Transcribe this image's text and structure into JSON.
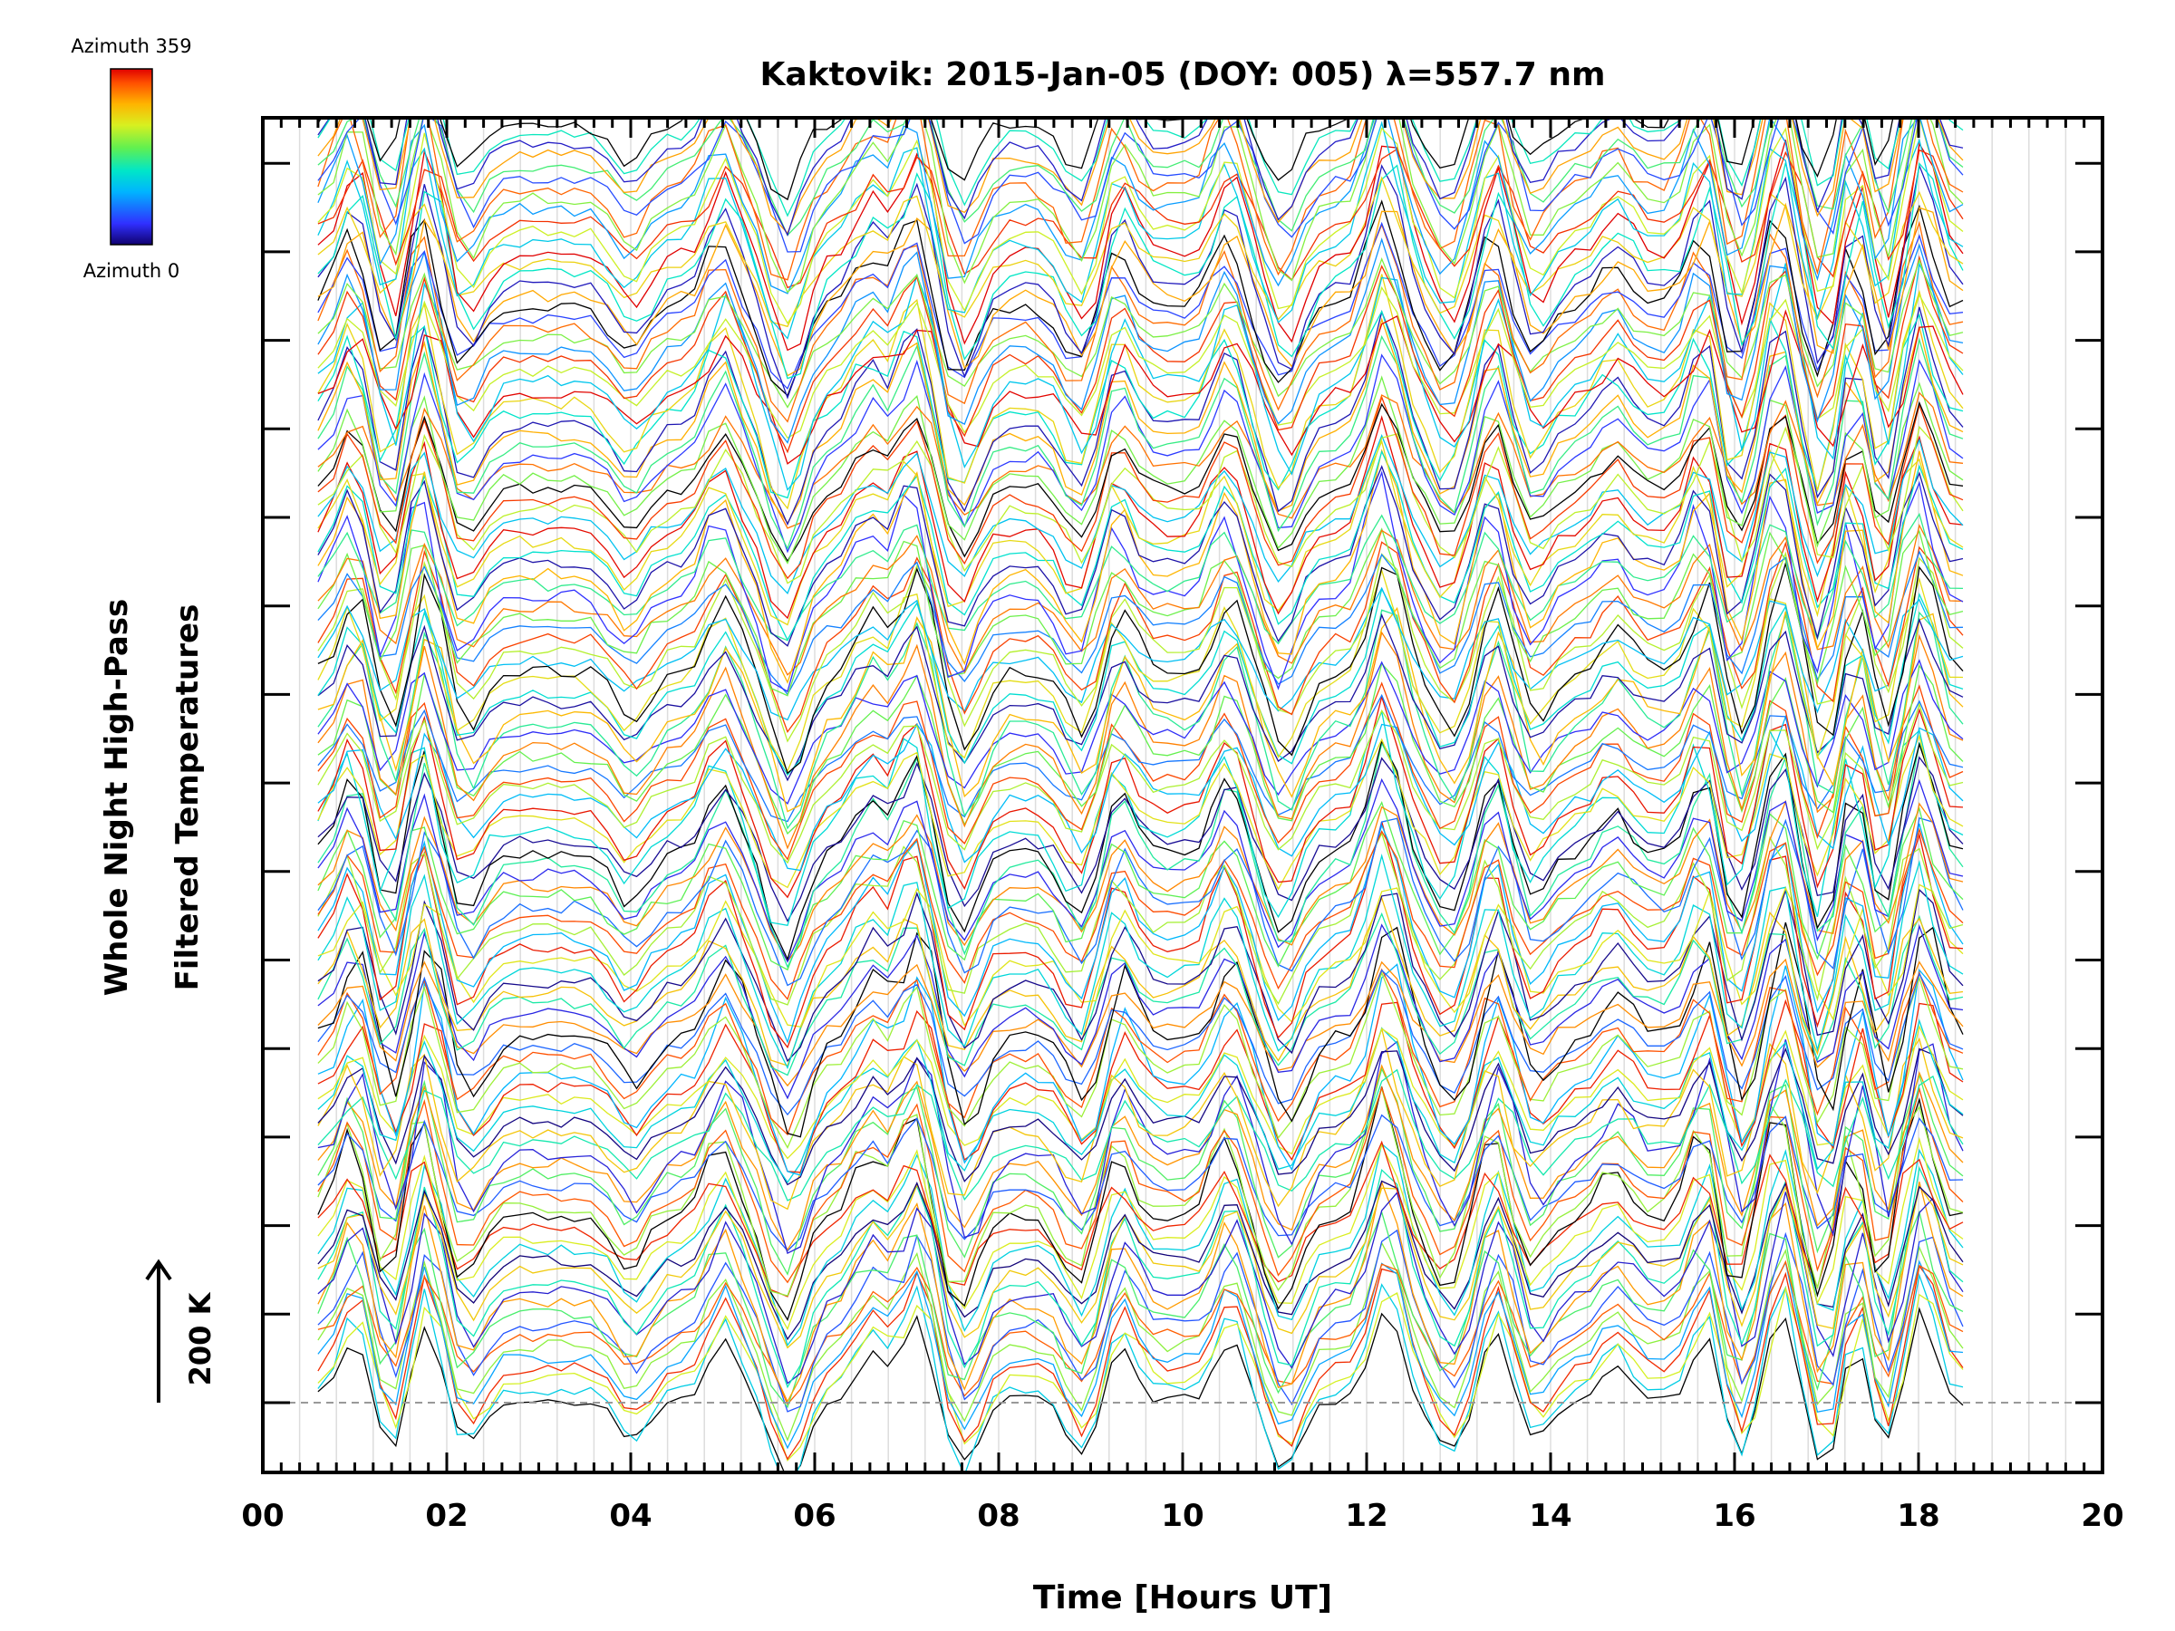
{
  "chart_data": {
    "type": "line",
    "title": "Kaktovik: 2015-Jan-05 (DOY: 005) λ=557.7 nm",
    "xlabel": "Time [Hours UT]",
    "ylabel_lines": [
      "Whole Night High-Pass",
      "Filtered Temperatures"
    ],
    "xlim": [
      0,
      20
    ],
    "x_tick_labels": [
      "00",
      "02",
      "04",
      "06",
      "08",
      "10",
      "12",
      "14",
      "16",
      "18",
      "20"
    ],
    "x_ticks": [
      0,
      2,
      4,
      6,
      8,
      10,
      12,
      14,
      16,
      18,
      20
    ],
    "y_tick_count": 15,
    "grid": "vertical, every 0.4 h",
    "scale_bar_label": "200 K",
    "colorbar": {
      "top_label": "Azimuth  359",
      "bottom_label": "Azimuth  0",
      "colormap": "rainbow (blue → red)",
      "colors": [
        "#10006e",
        "#3030ff",
        "#00b4ff",
        "#00e6c8",
        "#60f050",
        "#d8f020",
        "#ffb400",
        "#ff5000",
        "#e00000"
      ]
    },
    "series_count": 120,
    "x_range_of_data": [
      0.6,
      18.6
    ],
    "baseline_dashed": true
  }
}
